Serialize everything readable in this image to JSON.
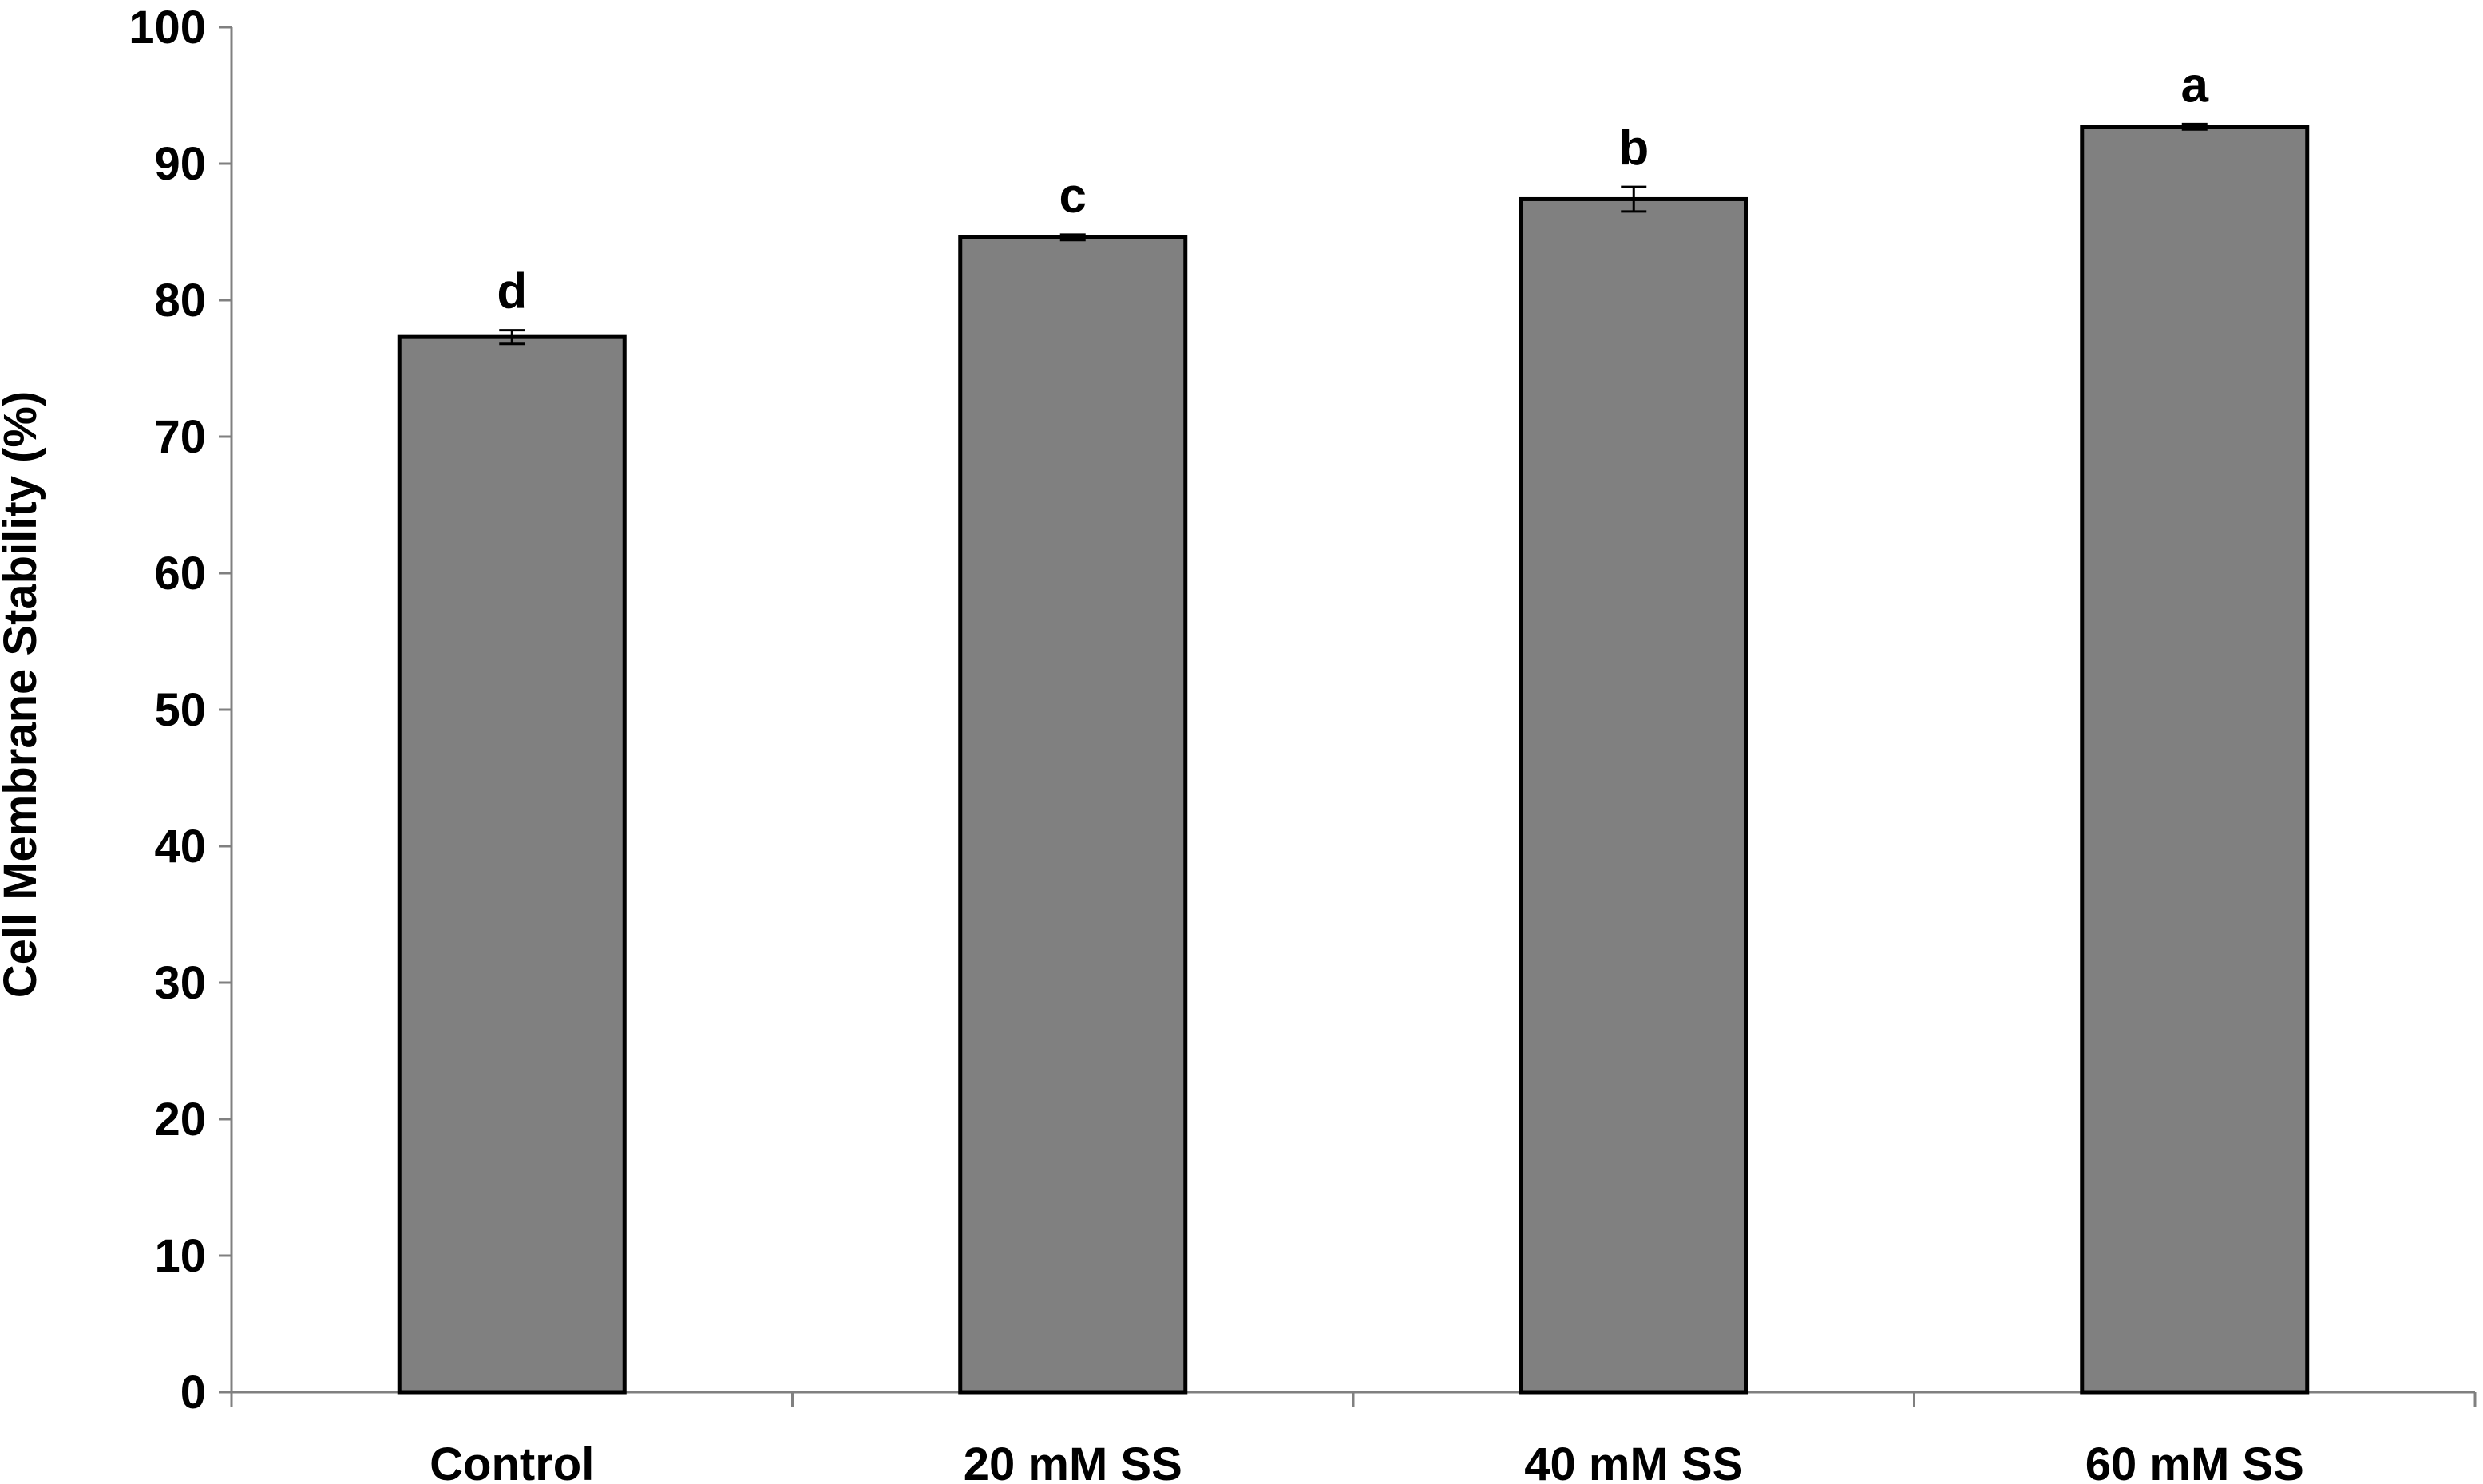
{
  "chart_data": {
    "type": "bar",
    "title": "",
    "xlabel": "",
    "ylabel": "Cell Membrane Stability (%)",
    "ylim": [
      0,
      100
    ],
    "yticks": [
      0,
      10,
      20,
      30,
      40,
      50,
      60,
      70,
      80,
      90,
      100
    ],
    "categories": [
      "Control",
      "20 mM SS",
      "40 mM SS",
      "60 mM SS"
    ],
    "values": [
      77.3,
      84.6,
      87.4,
      92.7
    ],
    "errors": [
      0.5,
      0.2,
      0.9,
      0.2
    ],
    "significance_letters": [
      "d",
      "c",
      "b",
      "a"
    ],
    "bar_color": "#808080",
    "grid": false,
    "legend": "none"
  }
}
